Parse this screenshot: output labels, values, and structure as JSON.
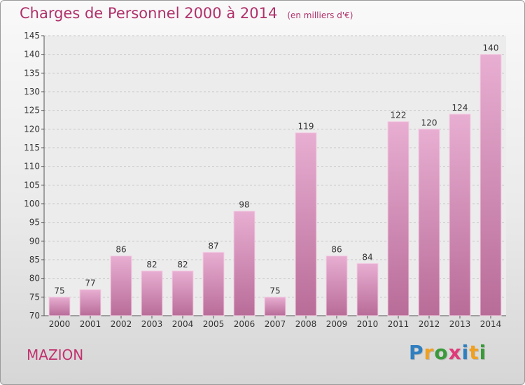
{
  "header": {
    "title": "Charges de Personnel 2000 à 2014",
    "subtitle": "(en milliers d'€)"
  },
  "footer": {
    "commune": "MAZION",
    "logo_text": "Proxiti"
  },
  "colors": {
    "title": "#b0306a",
    "bar_top": "#e8aed2",
    "bar_bottom": "#b86c98",
    "logo_letters": [
      "#2f7fc0",
      "#f0a020",
      "#3a9a3a",
      "#e03a7a",
      "#2f7fc0",
      "#f0a020",
      "#3a9a3a"
    ]
  },
  "chart_data": {
    "type": "bar",
    "categories": [
      "2000",
      "2001",
      "2002",
      "2003",
      "2004",
      "2005",
      "2006",
      "2007",
      "2008",
      "2009",
      "2010",
      "2011",
      "2012",
      "2013",
      "2014"
    ],
    "values": [
      75,
      77,
      86,
      82,
      82,
      87,
      98,
      75,
      119,
      86,
      84,
      122,
      120,
      124,
      140
    ],
    "ylim": [
      70,
      145
    ],
    "yticks": [
      70,
      75,
      80,
      85,
      90,
      95,
      100,
      105,
      110,
      115,
      120,
      125,
      130,
      135,
      140,
      145
    ],
    "grid": true,
    "data_labels": true
  }
}
